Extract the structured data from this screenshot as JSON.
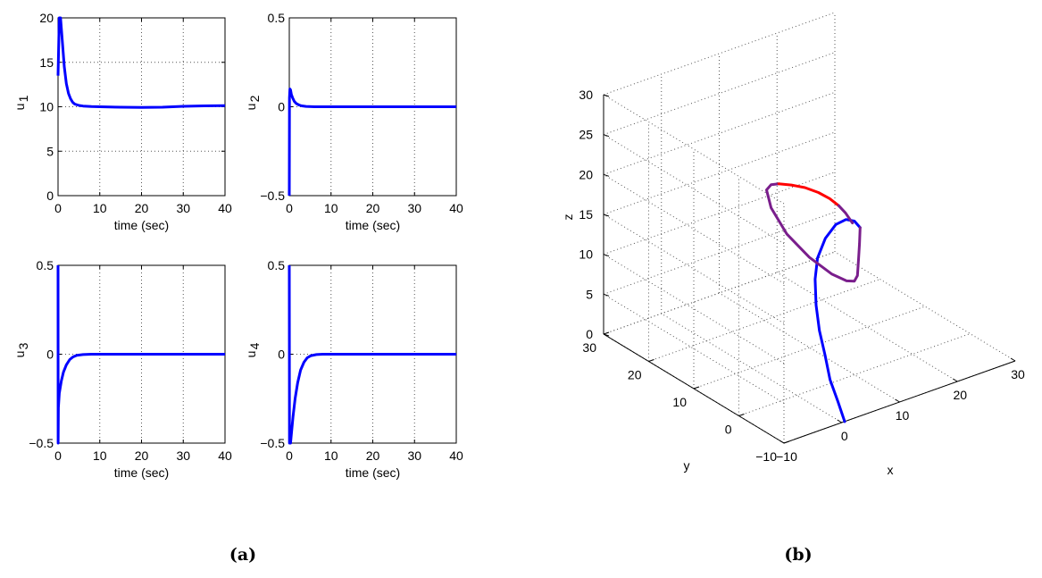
{
  "captions": {
    "a": "(a)",
    "b": "(b)"
  },
  "chart_data": [
    {
      "type": "line",
      "xlabel": "time (sec)",
      "ylabel": "u",
      "ylabel_sub": "1",
      "xlim": [
        0,
        40
      ],
      "ylim": [
        0,
        20
      ],
      "xticks": [
        0,
        10,
        20,
        30,
        40
      ],
      "yticks": [
        0,
        5,
        10,
        15,
        20
      ],
      "grid": true,
      "series": [
        {
          "color": "#0000ff",
          "x": [
            0,
            0.3,
            0.6,
            1,
            1.5,
            2,
            2.5,
            3,
            3.5,
            4,
            5,
            6,
            8,
            10,
            15,
            20,
            25,
            30,
            35,
            40
          ],
          "y": [
            13.5,
            20,
            20,
            17.5,
            14.5,
            12.6,
            11.5,
            10.9,
            10.5,
            10.3,
            10.15,
            10.08,
            10.02,
            10.0,
            9.95,
            9.92,
            9.95,
            10.05,
            10.1,
            10.12
          ]
        }
      ]
    },
    {
      "type": "line",
      "xlabel": "time (sec)",
      "ylabel": "u",
      "ylabel_sub": "2",
      "xlim": [
        0,
        40
      ],
      "ylim": [
        -0.5,
        0.5
      ],
      "xticks": [
        0,
        10,
        20,
        30,
        40
      ],
      "yticks": [
        -0.5,
        0,
        0.5
      ],
      "grid": true,
      "series": [
        {
          "color": "#0000ff",
          "x": [
            0,
            0.05,
            0.15,
            0.3,
            0.5,
            0.8,
            1.2,
            1.7,
            2.3,
            3,
            4,
            6,
            10,
            20,
            40
          ],
          "y": [
            -0.5,
            0.05,
            0.1,
            0.095,
            0.07,
            0.05,
            0.03,
            0.018,
            0.01,
            0.005,
            0.002,
            0.0,
            0.0,
            0.0,
            0.0
          ]
        }
      ]
    },
    {
      "type": "line",
      "xlabel": "time (sec)",
      "ylabel": "u",
      "ylabel_sub": "3",
      "xlim": [
        0,
        40
      ],
      "ylim": [
        -0.5,
        0.5
      ],
      "xticks": [
        0,
        10,
        20,
        30,
        40
      ],
      "yticks": [
        -0.5,
        0,
        0.5
      ],
      "grid": true,
      "series": [
        {
          "color": "#0000ff",
          "x": [
            0,
            0.02,
            0.08,
            0.3,
            0.8,
            1.3,
            2,
            2.8,
            3.6,
            4.5,
            6,
            8,
            10,
            20,
            40
          ],
          "y": [
            0.5,
            -0.5,
            -0.3,
            -0.22,
            -0.15,
            -0.1,
            -0.06,
            -0.03,
            -0.015,
            -0.006,
            -0.002,
            0.0,
            0.0,
            0.0,
            0.0
          ]
        }
      ]
    },
    {
      "type": "line",
      "xlabel": "time (sec)",
      "ylabel": "u",
      "ylabel_sub": "4",
      "xlim": [
        0,
        40
      ],
      "ylim": [
        -0.5,
        0.5
      ],
      "xticks": [
        0,
        10,
        20,
        30,
        40
      ],
      "yticks": [
        -0.5,
        0,
        0.5
      ],
      "grid": true,
      "series": [
        {
          "color": "#0000ff",
          "x": [
            0,
            0.05,
            0.3,
            0.5,
            0.9,
            1.4,
            2,
            2.7,
            3.5,
            4.3,
            5.2,
            6.5,
            8,
            10,
            20,
            40
          ],
          "y": [
            0.5,
            -0.5,
            -0.5,
            -0.45,
            -0.35,
            -0.25,
            -0.16,
            -0.09,
            -0.045,
            -0.02,
            -0.008,
            -0.002,
            0.0,
            0.0,
            0.0,
            0.0
          ]
        }
      ]
    },
    {
      "type": "line3d",
      "xlabel": "x",
      "ylabel": "y",
      "zlabel": "z",
      "xlim": [
        -10,
        30
      ],
      "ylim": [
        -10,
        30
      ],
      "zlim": [
        0,
        30
      ],
      "xticks": [
        -10,
        0,
        10,
        20,
        30
      ],
      "yticks": [
        -10,
        0,
        10,
        20,
        30
      ],
      "zticks": [
        0,
        5,
        10,
        15,
        20,
        25,
        30
      ],
      "grid": true,
      "series": [
        {
          "color": "#0000ff",
          "points": [
            [
              0.5,
              -10,
              0
            ],
            [
              0.5,
              -8.5,
              2
            ],
            [
              0.7,
              -6.5,
              4
            ],
            [
              1,
              -5,
              6.5
            ],
            [
              1.2,
              -3.5,
              9
            ],
            [
              1.8,
              -2,
              11.5
            ],
            [
              2.8,
              -0.5,
              14
            ],
            [
              4,
              0.5,
              16
            ],
            [
              5.5,
              0.7,
              18
            ],
            [
              7,
              0.3,
              19.5
            ],
            [
              8.3,
              -0.3,
              20
            ],
            [
              9.2,
              -1,
              19.8
            ],
            [
              9.8,
              -1.5,
              19
            ]
          ]
        },
        {
          "color": "#7a1e8c",
          "points": [
            [
              9.8,
              -1.5,
              19
            ],
            [
              9.7,
              -1.5,
              17
            ],
            [
              9.6,
              -1.4,
              15
            ],
            [
              9.5,
              -1.3,
              13
            ],
            [
              9.6,
              -0.5,
              12
            ],
            [
              9.8,
              1.5,
              11.3
            ],
            [
              10,
              5,
              10.9
            ],
            [
              10,
              10,
              11.3
            ],
            [
              10,
              15,
              12.5
            ],
            [
              10,
              18.5,
              14.6
            ],
            [
              10,
              19.5,
              16.5
            ],
            [
              10,
              18.5,
              17.5
            ],
            [
              10,
              16.8,
              18.2
            ]
          ]
        },
        {
          "color": "#ff0000",
          "points": [
            [
              10,
              16.8,
              18.2
            ],
            [
              10,
              14,
              19
            ],
            [
              10,
              11,
              19.7
            ],
            [
              10,
              8,
              20.1
            ],
            [
              10,
              5.5,
              20.2
            ],
            [
              10,
              3.5,
              20
            ]
          ]
        },
        {
          "color": "#7a1e8c",
          "points": [
            [
              10,
              3.5,
              20
            ],
            [
              10,
              2,
              19.6
            ],
            [
              9.8,
              0.2,
              19
            ]
          ]
        }
      ]
    }
  ]
}
